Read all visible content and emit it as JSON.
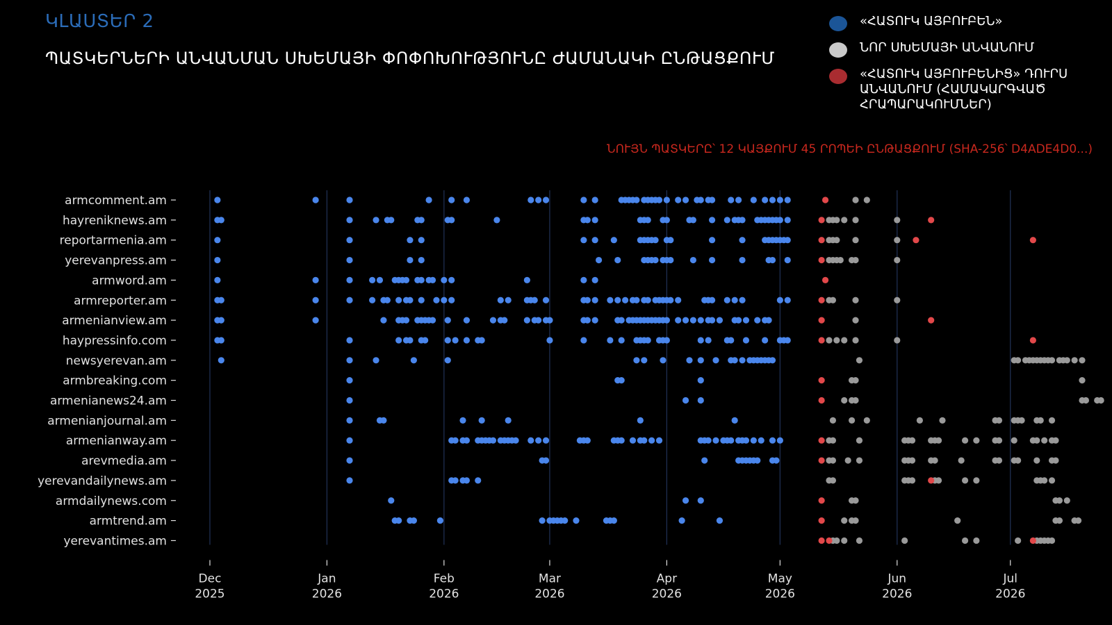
{
  "header": {
    "cluster_label": "ԿԼԱՍՏԵՐ 2",
    "title": "ՊԱՏԿԵՐՆԵՐԻ ԱՆՎԱՆՄԱՆ ՍԽԵՄԱՅԻ ՓՈՓՈԽՈՒԹՅՈՒՆԸ ԺԱՄԱՆԱԿԻ ԸՆԹԱՑՔՈՒՄ",
    "subtitle": "ՆՈՒՅՆ ՊԱՏԿԵՐԸ՝ 12 ԿԱՅՔՈՒՄ 45 ՐՈՊԵԻ ԸՆԹԱՑՔՈՒՄ (SHA-256՝ D4ADE4D0...)"
  },
  "legend": [
    {
      "label": "«ՀԱՏՈՒԿ ԱՅԲՈՒԲԵՆ»",
      "color": "#1b5597"
    },
    {
      "label": "ՆՈՐ ՍԽԵՄԱՅԻ ԱՆՎԱՆՈՒՄ",
      "color": "#c9c9c9"
    },
    {
      "label": "«ՀԱՏՈՒԿ ԱՅԲՈՒԲԵՆԻՑ» ԴՈՒՐՍ\nԱՆՎԱՆՈՒՄ  (ՀԱՄԱԿԱՐԳՎԱԾ\nՀՐԱՊԱՐԱԿՈՒՄՆԵՐ)",
      "color": "#a92c30"
    }
  ],
  "colors": {
    "background": "#000000",
    "old_scheme_dot": "#4a86ec",
    "new_scheme_dot": "#9a9a9a",
    "outside_dot": "#e2484a",
    "title_accent": "#2b6cb8",
    "subtitle": "#c8281e"
  },
  "chart_data": {
    "type": "scatter",
    "x_axis": {
      "kind": "date",
      "range": [
        "2025-12-01",
        "2026-07-20"
      ],
      "ticks": [
        {
          "date": "2025-12-01",
          "label": [
            "Dec",
            "2025"
          ]
        },
        {
          "date": "2026-01-01",
          "label": [
            "Jan",
            "2026"
          ]
        },
        {
          "date": "2026-02-01",
          "label": [
            "Feb",
            "2026"
          ]
        },
        {
          "date": "2026-03-01",
          "label": [
            "Mar",
            "2026"
          ]
        },
        {
          "date": "2026-04-01",
          "label": [
            "Apr",
            "2026"
          ]
        },
        {
          "date": "2026-05-01",
          "label": [
            "May",
            "2026"
          ]
        },
        {
          "date": "2026-06-01",
          "label": [
            "Jun",
            "2026"
          ]
        },
        {
          "date": "2026-07-01",
          "label": [
            "Jul",
            "2026"
          ]
        }
      ]
    },
    "rows": [
      {
        "site": "armcomment.am",
        "old": [
          "2025-12-03",
          "2025-12-29",
          "2026-01-07",
          "2026-01-28",
          "2026-02-03",
          "2026-02-07",
          "2026-02-24",
          "2026-02-26",
          "2026-02-28",
          "2026-03-10",
          "2026-03-13",
          "2026-03-20",
          "2026-03-21",
          "2026-03-22",
          "2026-03-23",
          "2026-03-24",
          "2026-03-26",
          "2026-03-27",
          "2026-03-28",
          "2026-03-29",
          "2026-03-30",
          "2026-04-01",
          "2026-04-04",
          "2026-04-06",
          "2026-04-09",
          "2026-04-10",
          "2026-04-12",
          "2026-04-13",
          "2026-04-18",
          "2026-04-20",
          "2026-04-24",
          "2026-04-27",
          "2026-04-29",
          "2026-05-01",
          "2026-05-03"
        ],
        "new": [
          "2026-05-21",
          "2026-05-24"
        ],
        "outside": [
          "2026-05-13"
        ]
      },
      {
        "site": "hayreniknews.am",
        "old": [
          "2025-12-03",
          "2025-12-04",
          "2026-01-07",
          "2026-01-14",
          "2026-01-17",
          "2026-01-18",
          "2026-01-25",
          "2026-01-26",
          "2026-02-02",
          "2026-02-03",
          "2026-02-15",
          "2026-03-10",
          "2026-03-11",
          "2026-03-13",
          "2026-03-25",
          "2026-03-26",
          "2026-03-27",
          "2026-03-31",
          "2026-04-01",
          "2026-04-07",
          "2026-04-08",
          "2026-04-13",
          "2026-04-17",
          "2026-04-19",
          "2026-04-20",
          "2026-04-21",
          "2026-04-25",
          "2026-04-26",
          "2026-04-27",
          "2026-04-28",
          "2026-04-29",
          "2026-04-30",
          "2026-05-01",
          "2026-05-03"
        ],
        "new": [
          "2026-05-14",
          "2026-05-15",
          "2026-05-16",
          "2026-05-18",
          "2026-05-21",
          "2026-06-01"
        ],
        "outside": [
          "2026-05-12",
          "2026-06-10"
        ]
      },
      {
        "site": "reportarmenia.am",
        "old": [
          "2025-12-03",
          "2026-01-07",
          "2026-01-23",
          "2026-01-26",
          "2026-03-10",
          "2026-03-13",
          "2026-03-18",
          "2026-03-25",
          "2026-03-26",
          "2026-03-27",
          "2026-03-28",
          "2026-03-29",
          "2026-04-01",
          "2026-04-02",
          "2026-04-13",
          "2026-04-21",
          "2026-04-27",
          "2026-04-28",
          "2026-04-29",
          "2026-04-30",
          "2026-05-01",
          "2026-05-02",
          "2026-05-03"
        ],
        "new": [
          "2026-05-14",
          "2026-05-15",
          "2026-05-16",
          "2026-05-21",
          "2026-06-01"
        ],
        "outside": [
          "2026-05-12",
          "2026-06-06",
          "2026-07-07"
        ]
      },
      {
        "site": "yerevanpress.am",
        "old": [
          "2025-12-03",
          "2026-01-07",
          "2026-01-23",
          "2026-01-26",
          "2026-03-14",
          "2026-03-19",
          "2026-03-26",
          "2026-03-27",
          "2026-03-28",
          "2026-03-29",
          "2026-03-31",
          "2026-04-01",
          "2026-04-02",
          "2026-04-08",
          "2026-04-13",
          "2026-04-21",
          "2026-04-28",
          "2026-04-29",
          "2026-05-03"
        ],
        "new": [
          "2026-05-14",
          "2026-05-15",
          "2026-05-16",
          "2026-05-17",
          "2026-05-20",
          "2026-05-21",
          "2026-06-01"
        ],
        "outside": [
          "2026-05-12"
        ]
      },
      {
        "site": "armword.am",
        "old": [
          "2025-12-03",
          "2025-12-29",
          "2026-01-07",
          "2026-01-13",
          "2026-01-15",
          "2026-01-19",
          "2026-01-20",
          "2026-01-21",
          "2026-01-22",
          "2026-01-25",
          "2026-01-26",
          "2026-01-28",
          "2026-01-29",
          "2026-02-01",
          "2026-02-03",
          "2026-02-23",
          "2026-03-10",
          "2026-03-13"
        ],
        "new": [],
        "outside": [
          "2026-05-13"
        ]
      },
      {
        "site": "armreporter.am",
        "old": [
          "2025-12-03",
          "2025-12-04",
          "2025-12-29",
          "2026-01-07",
          "2026-01-13",
          "2026-01-16",
          "2026-01-17",
          "2026-01-20",
          "2026-01-22",
          "2026-01-23",
          "2026-01-26",
          "2026-01-30",
          "2026-02-01",
          "2026-02-03",
          "2026-02-16",
          "2026-02-18",
          "2026-02-23",
          "2026-02-24",
          "2026-02-25",
          "2026-02-28",
          "2026-03-10",
          "2026-03-11",
          "2026-03-13",
          "2026-03-17",
          "2026-03-19",
          "2026-03-21",
          "2026-03-23",
          "2026-03-24",
          "2026-03-26",
          "2026-03-27",
          "2026-03-29",
          "2026-03-30",
          "2026-03-31",
          "2026-04-01",
          "2026-04-02",
          "2026-04-04",
          "2026-04-11",
          "2026-04-12",
          "2026-04-13",
          "2026-04-17",
          "2026-04-19",
          "2026-04-21",
          "2026-05-01",
          "2026-05-03"
        ],
        "new": [
          "2026-05-14",
          "2026-05-15",
          "2026-05-21",
          "2026-06-01"
        ],
        "outside": [
          "2026-05-12"
        ]
      },
      {
        "site": "armenianview.am",
        "old": [
          "2025-12-03",
          "2025-12-04",
          "2025-12-29",
          "2026-01-16",
          "2026-01-20",
          "2026-01-21",
          "2026-01-22",
          "2026-01-25",
          "2026-01-26",
          "2026-01-27",
          "2026-01-28",
          "2026-01-29",
          "2026-02-02",
          "2026-02-07",
          "2026-02-14",
          "2026-02-16",
          "2026-02-17",
          "2026-02-23",
          "2026-02-25",
          "2026-02-26",
          "2026-02-28",
          "2026-03-01",
          "2026-03-10",
          "2026-03-11",
          "2026-03-13",
          "2026-03-19",
          "2026-03-20",
          "2026-03-22",
          "2026-03-23",
          "2026-03-24",
          "2026-03-25",
          "2026-03-26",
          "2026-03-27",
          "2026-03-28",
          "2026-03-29",
          "2026-03-30",
          "2026-03-31",
          "2026-04-01",
          "2026-04-04",
          "2026-04-06",
          "2026-04-08",
          "2026-04-10",
          "2026-04-12",
          "2026-04-13",
          "2026-04-15",
          "2026-04-19",
          "2026-04-20",
          "2026-04-22",
          "2026-04-25",
          "2026-04-27",
          "2026-04-28"
        ],
        "new": [
          "2026-05-21"
        ],
        "outside": [
          "2026-05-12",
          "2026-06-10"
        ]
      },
      {
        "site": "haypressinfo.com",
        "old": [
          "2025-12-03",
          "2025-12-04",
          "2026-01-07",
          "2026-01-20",
          "2026-01-22",
          "2026-01-23",
          "2026-01-26",
          "2026-01-27",
          "2026-02-02",
          "2026-02-04",
          "2026-02-07",
          "2026-02-10",
          "2026-02-11",
          "2026-03-01",
          "2026-03-10",
          "2026-03-17",
          "2026-03-20",
          "2026-03-24",
          "2026-03-25",
          "2026-03-26",
          "2026-03-27",
          "2026-03-30",
          "2026-03-31",
          "2026-04-01",
          "2026-04-10",
          "2026-04-12",
          "2026-04-17",
          "2026-04-18",
          "2026-04-22",
          "2026-04-27",
          "2026-05-01",
          "2026-05-02",
          "2026-05-03"
        ],
        "new": [
          "2026-05-14",
          "2026-05-16",
          "2026-05-18",
          "2026-05-21",
          "2026-06-01"
        ],
        "outside": [
          "2026-05-12",
          "2026-07-07"
        ]
      },
      {
        "site": "newsyerevan.am",
        "old": [
          "2025-12-04",
          "2026-01-07",
          "2026-01-14",
          "2026-01-24",
          "2026-02-02",
          "2026-03-24",
          "2026-03-26",
          "2026-03-31",
          "2026-04-07",
          "2026-04-10",
          "2026-04-14",
          "2026-04-18",
          "2026-04-19",
          "2026-04-21",
          "2026-04-23",
          "2026-04-24",
          "2026-04-25",
          "2026-04-26",
          "2026-04-27",
          "2026-04-28",
          "2026-04-29"
        ],
        "new": [
          "2026-05-22",
          "2026-07-02",
          "2026-07-03",
          "2026-07-05",
          "2026-07-06",
          "2026-07-07",
          "2026-07-08",
          "2026-07-09",
          "2026-07-10",
          "2026-07-11",
          "2026-07-12",
          "2026-07-14",
          "2026-07-15",
          "2026-07-16",
          "2026-07-18",
          "2026-07-20"
        ],
        "outside": []
      },
      {
        "site": "armbreaking.com",
        "old": [
          "2026-01-07",
          "2026-03-19",
          "2026-03-20",
          "2026-04-10"
        ],
        "new": [
          "2026-05-20",
          "2026-05-21",
          "2026-07-20"
        ],
        "outside": [
          "2026-05-12"
        ]
      },
      {
        "site": "armenianews24.am",
        "old": [
          "2026-01-07",
          "2026-04-06",
          "2026-04-10"
        ],
        "new": [
          "2026-05-18",
          "2026-05-20",
          "2026-05-21",
          "2026-07-20",
          "2026-07-21",
          "2026-07-24",
          "2026-07-25"
        ],
        "outside": [
          "2026-05-12"
        ]
      },
      {
        "site": "armenianjournal.am",
        "old": [
          "2026-01-07",
          "2026-01-15",
          "2026-01-16",
          "2026-02-06",
          "2026-02-11",
          "2026-02-18",
          "2026-03-25",
          "2026-04-19"
        ],
        "new": [
          "2026-05-15",
          "2026-05-20",
          "2026-05-24",
          "2026-06-07",
          "2026-06-13",
          "2026-06-27",
          "2026-06-28",
          "2026-07-02",
          "2026-07-03",
          "2026-07-04",
          "2026-07-08",
          "2026-07-09",
          "2026-07-12"
        ],
        "outside": []
      },
      {
        "site": "armenianway.am",
        "old": [
          "2026-01-07",
          "2026-02-03",
          "2026-02-04",
          "2026-02-06",
          "2026-02-07",
          "2026-02-10",
          "2026-02-11",
          "2026-02-12",
          "2026-02-13",
          "2026-02-14",
          "2026-02-16",
          "2026-02-17",
          "2026-02-18",
          "2026-02-19",
          "2026-02-20",
          "2026-02-24",
          "2026-02-26",
          "2026-02-28",
          "2026-03-09",
          "2026-03-10",
          "2026-03-11",
          "2026-03-18",
          "2026-03-19",
          "2026-03-20",
          "2026-03-23",
          "2026-03-25",
          "2026-03-26",
          "2026-03-28",
          "2026-03-30",
          "2026-04-10",
          "2026-04-11",
          "2026-04-12",
          "2026-04-14",
          "2026-04-16",
          "2026-04-17",
          "2026-04-18",
          "2026-04-20",
          "2026-04-21",
          "2026-04-22",
          "2026-04-24",
          "2026-04-26",
          "2026-04-29",
          "2026-05-01"
        ],
        "new": [
          "2026-05-14",
          "2026-05-15",
          "2026-05-22",
          "2026-06-03",
          "2026-06-04",
          "2026-06-05",
          "2026-06-10",
          "2026-06-11",
          "2026-06-12",
          "2026-06-19",
          "2026-06-22",
          "2026-06-27",
          "2026-06-28",
          "2026-07-02",
          "2026-07-07",
          "2026-07-08",
          "2026-07-10",
          "2026-07-12",
          "2026-07-13"
        ],
        "outside": [
          "2026-05-12"
        ]
      },
      {
        "site": "arevmedia.am",
        "old": [
          "2026-01-07",
          "2026-02-27",
          "2026-02-28",
          "2026-04-11",
          "2026-04-20",
          "2026-04-21",
          "2026-04-22",
          "2026-04-23",
          "2026-04-24",
          "2026-04-25",
          "2026-04-29",
          "2026-04-30"
        ],
        "new": [
          "2026-05-14",
          "2026-05-15",
          "2026-05-19",
          "2026-05-22",
          "2026-06-03",
          "2026-06-04",
          "2026-06-05",
          "2026-06-10",
          "2026-06-11",
          "2026-06-18",
          "2026-06-27",
          "2026-06-28",
          "2026-07-02",
          "2026-07-03",
          "2026-07-08",
          "2026-07-12",
          "2026-07-13"
        ],
        "outside": [
          "2026-05-12"
        ]
      },
      {
        "site": "yerevandailynews.am",
        "old": [
          "2026-01-07",
          "2026-02-03",
          "2026-02-04",
          "2026-02-06",
          "2026-02-07",
          "2026-02-10"
        ],
        "new": [
          "2026-05-14",
          "2026-05-15",
          "2026-06-03",
          "2026-06-04",
          "2026-06-05",
          "2026-06-11",
          "2026-06-12",
          "2026-06-19",
          "2026-06-22",
          "2026-07-08",
          "2026-07-09",
          "2026-07-10",
          "2026-07-12"
        ],
        "outside": [
          "2026-06-10"
        ]
      },
      {
        "site": "armdailynews.com",
        "old": [
          "2026-01-18",
          "2026-04-06",
          "2026-04-10"
        ],
        "new": [
          "2026-05-20",
          "2026-05-21",
          "2026-07-13",
          "2026-07-14",
          "2026-07-16"
        ],
        "outside": [
          "2026-05-12"
        ]
      },
      {
        "site": "armtrend.am",
        "old": [
          "2026-01-19",
          "2026-01-20",
          "2026-01-23",
          "2026-01-24",
          "2026-01-31",
          "2026-02-27",
          "2026-03-01",
          "2026-03-02",
          "2026-03-03",
          "2026-03-04",
          "2026-03-05",
          "2026-03-08",
          "2026-03-16",
          "2026-03-17",
          "2026-03-18",
          "2026-04-05",
          "2026-04-15"
        ],
        "new": [
          "2026-05-18",
          "2026-05-20",
          "2026-05-21",
          "2026-06-17",
          "2026-07-13",
          "2026-07-14",
          "2026-07-18",
          "2026-07-19"
        ],
        "outside": [
          "2026-05-12"
        ]
      },
      {
        "site": "yerevantimes.am",
        "old": [],
        "new": [
          "2026-05-15",
          "2026-05-16",
          "2026-05-18",
          "2026-05-22",
          "2026-06-03",
          "2026-06-19",
          "2026-06-22",
          "2026-07-03",
          "2026-07-08",
          "2026-07-09",
          "2026-07-10",
          "2026-07-11",
          "2026-07-12"
        ],
        "outside": [
          "2026-05-12",
          "2026-05-14",
          "2026-07-07"
        ]
      }
    ]
  }
}
